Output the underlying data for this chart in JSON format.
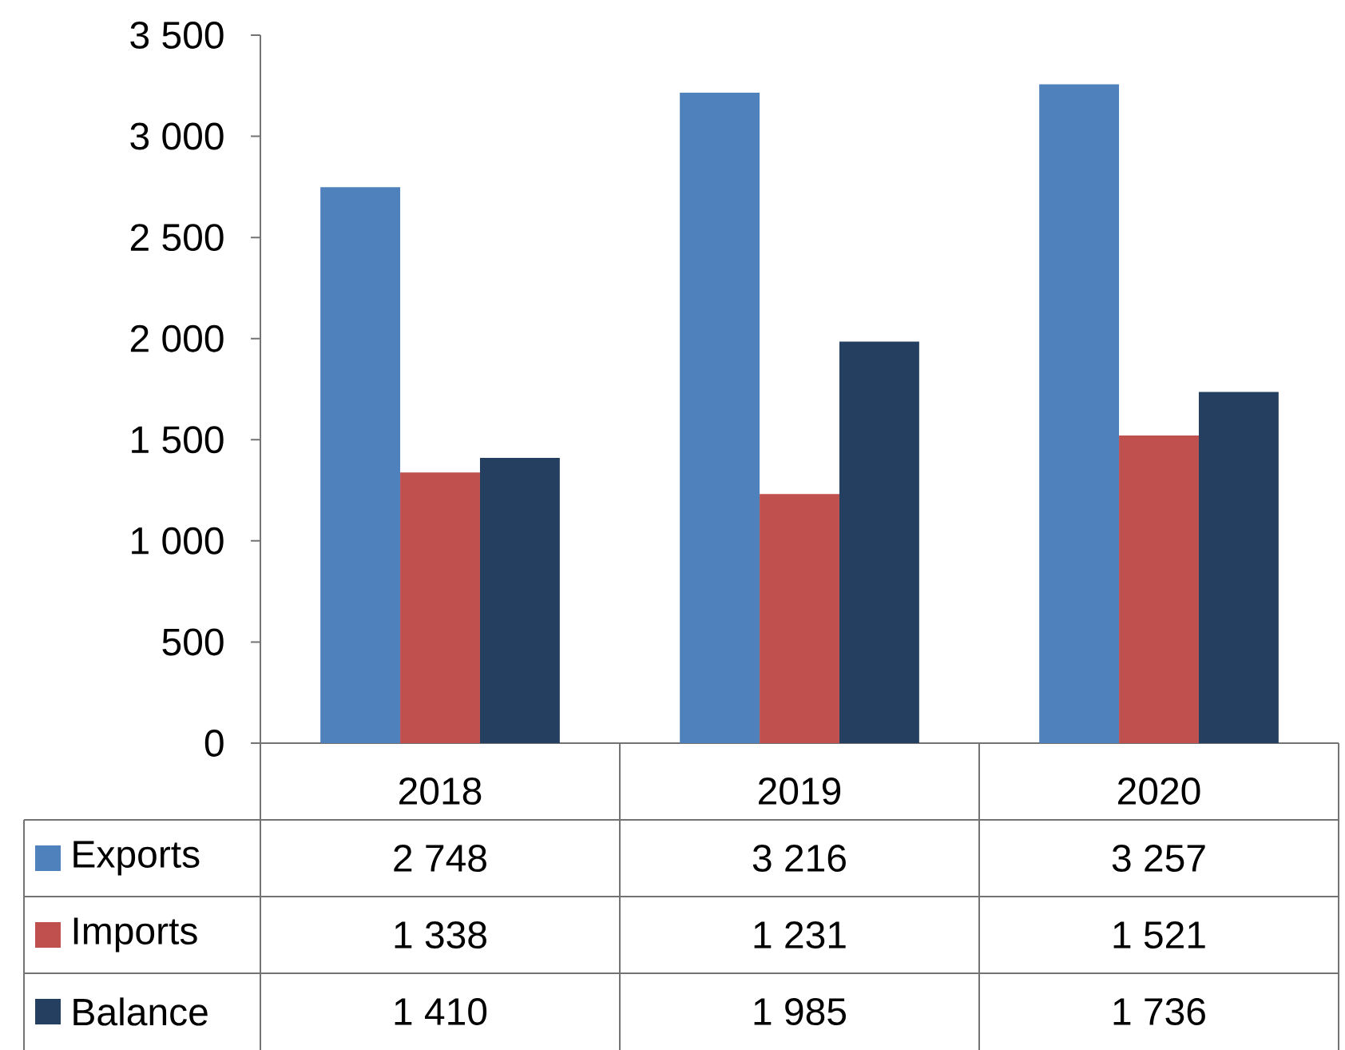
{
  "chart_data": {
    "type": "bar",
    "categories": [
      "2018",
      "2019",
      "2020"
    ],
    "series": [
      {
        "name": "Exports",
        "color": "#4f81bd",
        "values": [
          2748,
          3216,
          3257
        ],
        "value_labels": [
          "2 748",
          "3 216",
          "3 257"
        ]
      },
      {
        "name": "Imports",
        "color": "#c0504d",
        "values": [
          1338,
          1231,
          1521
        ],
        "value_labels": [
          "1 338",
          "1 231",
          "1 521"
        ]
      },
      {
        "name": "Balance",
        "color": "#243f60",
        "values": [
          1410,
          1985,
          1736
        ],
        "value_labels": [
          "1 410",
          "1 985",
          "1 736"
        ]
      }
    ],
    "ylim": [
      0,
      3500
    ],
    "yticks": [
      0,
      500,
      {
        "value": 1000,
        "label": "1 000"
      },
      {
        "value": 1500,
        "label": "1 500"
      },
      {
        "value": 2000,
        "label": "2 000"
      },
      {
        "value": 2500,
        "label": "2 500"
      },
      {
        "value": 3000,
        "label": "3 000"
      },
      {
        "value": 3500,
        "label": "3 500"
      }
    ],
    "legend": "bottom"
  }
}
